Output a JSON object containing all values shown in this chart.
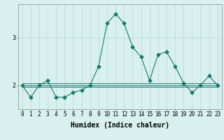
{
  "xlabel": "Humidex (Indice chaleur)",
  "ylabel": "",
  "x": [
    0,
    1,
    2,
    3,
    4,
    5,
    6,
    7,
    8,
    9,
    10,
    11,
    12,
    13,
    14,
    15,
    16,
    17,
    18,
    19,
    20,
    21,
    22,
    23
  ],
  "y_main": [
    2.0,
    1.75,
    2.0,
    2.1,
    1.75,
    1.75,
    1.85,
    1.9,
    2.0,
    2.4,
    3.3,
    3.5,
    3.3,
    2.8,
    2.6,
    2.1,
    2.65,
    2.7,
    2.4,
    2.05,
    1.85,
    2.0,
    2.2,
    2.0
  ],
  "y_ref1": [
    2.05,
    2.05,
    2.05,
    2.05,
    2.05,
    2.05,
    2.05,
    2.05,
    2.05,
    2.05,
    2.05,
    2.05,
    2.05,
    2.05,
    2.05,
    2.05,
    2.05,
    2.05,
    2.05,
    2.05,
    2.05,
    2.05,
    2.05,
    2.05
  ],
  "y_ref2": [
    2.0,
    2.0,
    2.0,
    2.0,
    2.0,
    2.0,
    2.0,
    2.0,
    2.0,
    2.0,
    2.0,
    2.0,
    2.0,
    2.0,
    2.0,
    2.0,
    2.0,
    2.0,
    2.0,
    2.0,
    2.0,
    2.0,
    2.0,
    2.0
  ],
  "y_ref3": [
    1.97,
    1.97,
    1.97,
    1.97,
    1.97,
    1.97,
    1.97,
    1.97,
    1.97,
    1.97,
    1.97,
    1.97,
    1.97,
    1.97,
    1.97,
    1.97,
    1.97,
    1.97,
    1.97,
    1.97,
    1.97,
    1.97,
    1.97,
    1.97
  ],
  "line_color": "#1a7a6e",
  "bg_color": "#d8f0ee",
  "grid_color": "#b8d8d4",
  "ylim": [
    1.5,
    3.7
  ],
  "yticks": [
    2,
    3
  ],
  "xticks": [
    0,
    1,
    2,
    3,
    4,
    5,
    6,
    7,
    8,
    9,
    10,
    11,
    12,
    13,
    14,
    15,
    16,
    17,
    18,
    19,
    20,
    21,
    22,
    23
  ],
  "marker": "D",
  "markersize": 2.5,
  "linewidth": 0.8,
  "axis_fontsize": 7,
  "tick_fontsize": 5.5
}
